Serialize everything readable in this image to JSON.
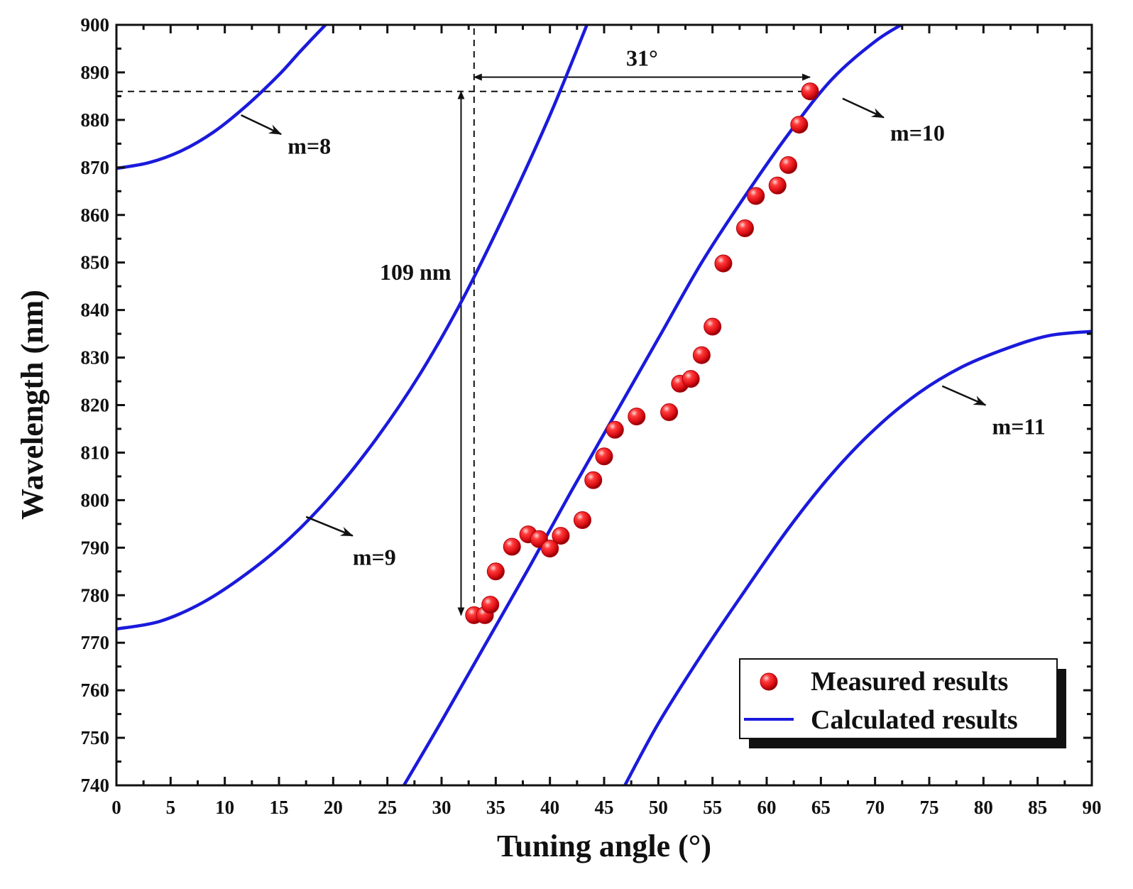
{
  "chart_data": {
    "type": "scatter",
    "title": "",
    "xlabel": "Tuning angle (°)",
    "ylabel": "Wavelength (nm)",
    "xlim": [
      0,
      90
    ],
    "ylim": [
      740,
      900
    ],
    "x_ticks": [
      0,
      5,
      10,
      15,
      20,
      25,
      30,
      35,
      40,
      45,
      50,
      55,
      60,
      65,
      70,
      75,
      80,
      85,
      90
    ],
    "y_ticks": [
      740,
      750,
      760,
      770,
      780,
      790,
      800,
      810,
      820,
      830,
      840,
      850,
      860,
      870,
      880,
      890,
      900
    ],
    "grid": false,
    "legend": {
      "position": "bottom-right",
      "entries": [
        {
          "label": "Measured results",
          "marker": "red-sphere"
        },
        {
          "label": "Calculated results",
          "marker": "blue-line"
        }
      ]
    },
    "series": [
      {
        "name": "Measured results",
        "kind": "points",
        "color": "#e8141b",
        "points": [
          [
            33,
            775.8
          ],
          [
            34,
            775.8
          ],
          [
            34.5,
            778
          ],
          [
            35,
            785
          ],
          [
            36.5,
            790.2
          ],
          [
            38,
            792.8
          ],
          [
            39,
            791.8
          ],
          [
            40,
            789.8
          ],
          [
            41,
            792.5
          ],
          [
            43,
            795.8
          ],
          [
            44,
            804.2
          ],
          [
            45,
            809.2
          ],
          [
            46,
            814.8
          ],
          [
            48,
            817.6
          ],
          [
            51,
            818.5
          ],
          [
            52,
            824.5
          ],
          [
            53,
            825.5
          ],
          [
            54,
            830.5
          ],
          [
            55,
            836.5
          ],
          [
            56,
            849.8
          ],
          [
            58,
            857.2
          ],
          [
            59,
            864
          ],
          [
            61,
            866.2
          ],
          [
            62,
            870.5
          ],
          [
            63,
            879
          ],
          [
            64,
            886
          ]
        ]
      },
      {
        "name": "Calculated results m=8",
        "kind": "curve",
        "color": "#1a1adc",
        "points": [
          [
            0,
            869.8
          ],
          [
            3,
            871
          ],
          [
            6,
            873.5
          ],
          [
            9,
            877.5
          ],
          [
            12,
            883
          ],
          [
            15,
            889.5
          ],
          [
            17,
            894.5
          ],
          [
            19.5,
            900.5
          ]
        ]
      },
      {
        "name": "Calculated results m=9",
        "kind": "curve",
        "color": "#1a1adc",
        "points": [
          [
            0,
            772.9
          ],
          [
            4,
            774.5
          ],
          [
            8,
            778.5
          ],
          [
            12,
            784.5
          ],
          [
            16,
            792
          ],
          [
            20,
            801.5
          ],
          [
            24,
            813
          ],
          [
            28,
            826.5
          ],
          [
            32,
            842.5
          ],
          [
            36,
            861
          ],
          [
            40,
            881
          ],
          [
            43.5,
            900.5
          ]
        ]
      },
      {
        "name": "Calculated results m=10",
        "kind": "curve",
        "color": "#1a1adc",
        "points": [
          [
            26.4,
            739.5
          ],
          [
            30,
            753.5
          ],
          [
            34,
            769.5
          ],
          [
            38,
            785.5
          ],
          [
            42,
            802
          ],
          [
            46,
            818
          ],
          [
            50,
            834
          ],
          [
            54,
            850
          ],
          [
            58,
            864
          ],
          [
            62,
            877
          ],
          [
            66,
            888.5
          ],
          [
            70,
            896.5
          ],
          [
            72.8,
            900.5
          ]
        ]
      },
      {
        "name": "Calculated results m=11",
        "kind": "curve",
        "color": "#1a1adc",
        "points": [
          [
            46.8,
            739.5
          ],
          [
            50,
            753
          ],
          [
            54,
            767.5
          ],
          [
            58,
            781
          ],
          [
            62,
            794
          ],
          [
            66,
            805.5
          ],
          [
            70,
            815
          ],
          [
            74,
            822.5
          ],
          [
            78,
            828
          ],
          [
            82,
            831.8
          ],
          [
            86,
            834.6
          ],
          [
            90,
            835.5
          ]
        ]
      }
    ],
    "annotations": {
      "delta_angle": {
        "text": "31°",
        "x_from": 33,
        "x_to": 64,
        "y": 889
      },
      "delta_wavelength": {
        "text": "109 nm",
        "x": 31.8,
        "y_from": 886,
        "y_to": 775.8,
        "text_y": 848
      },
      "guide_horizontal": {
        "y": 886,
        "x_from": 0,
        "x_to": 64
      },
      "guide_vertical": {
        "x": 33,
        "y_from": 776,
        "y_to": 900
      },
      "order_labels": [
        {
          "text": "m=8",
          "arrow_from": [
            11.5,
            881
          ],
          "arrow_to": [
            15.2,
            877
          ],
          "text_x": 15.8,
          "text_y": 874.5
        },
        {
          "text": "m=9",
          "arrow_from": [
            17.5,
            796.5
          ],
          "arrow_to": [
            21.8,
            792.5
          ],
          "text_x": 21.8,
          "text_y": 788
        },
        {
          "text": "m=10",
          "arrow_from": [
            67,
            884.5
          ],
          "arrow_to": [
            70.8,
            880.5
          ],
          "text_x": 71.4,
          "text_y": 877.3
        },
        {
          "text": "m=11",
          "arrow_from": [
            76.2,
            824
          ],
          "arrow_to": [
            80.2,
            820
          ],
          "text_x": 80.8,
          "text_y": 815.5
        }
      ]
    }
  }
}
